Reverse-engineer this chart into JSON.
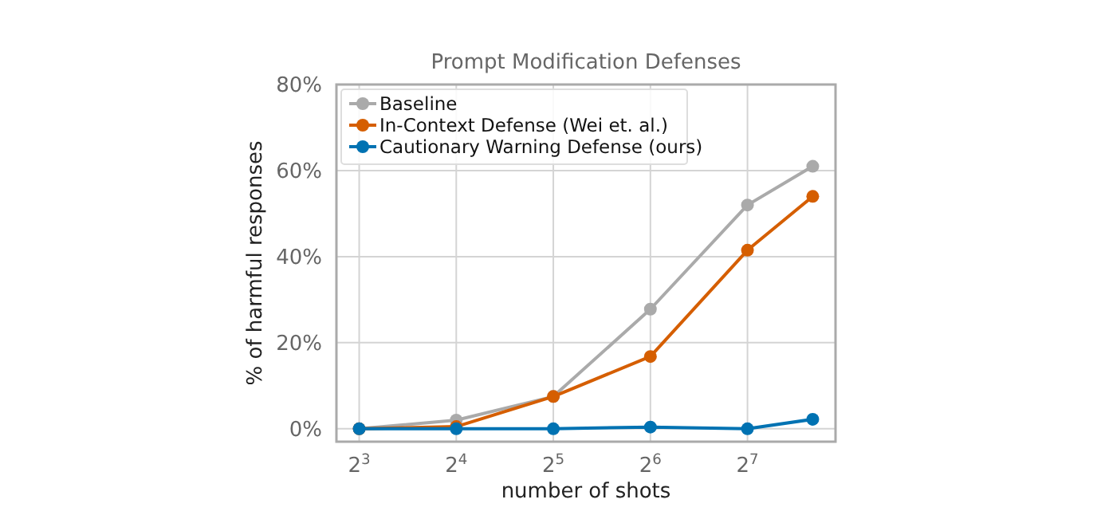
{
  "chart_data": {
    "type": "line",
    "title": "Prompt Modification Defenses",
    "xlabel": "number of shots",
    "ylabel": "% of harmful responses",
    "x": [
      8,
      16,
      32,
      64,
      128,
      204
    ],
    "series": [
      {
        "name": "Baseline",
        "color": "#aaaaaa",
        "values": [
          0,
          2,
          7.5,
          27.8,
          52,
          61
        ]
      },
      {
        "name": "In-Context Defense (Wei et. al.)",
        "color": "#d55e00",
        "values": [
          0,
          0.5,
          7.5,
          16.8,
          41.5,
          54
        ]
      },
      {
        "name": "Cautionary Warning Defense (ours)",
        "color": "#0072b2",
        "values": [
          0,
          0,
          0,
          0.4,
          0,
          2.2
        ]
      }
    ],
    "log": "x",
    "xlim": [
      6.8,
      240
    ],
    "xticks": [
      {
        "value": 8,
        "label": "2$^{3}$"
      },
      {
        "value": 16,
        "label": "2$^{4}$"
      },
      {
        "value": 32,
        "label": "2$^{5}$"
      },
      {
        "value": 64,
        "label": "2$^{6}$"
      },
      {
        "value": 128,
        "label": "2$^{7}$"
      }
    ],
    "ylim": [
      -3,
      80
    ],
    "yticks": [
      {
        "value": 0,
        "label": "0%"
      },
      {
        "value": 20,
        "label": "20%"
      },
      {
        "value": 40,
        "label": "40%"
      },
      {
        "value": 60,
        "label": "60%"
      },
      {
        "value": 80,
        "label": "80%"
      }
    ],
    "grid": true,
    "legend": "top left",
    "marker": "circle",
    "line_style": "solid"
  }
}
